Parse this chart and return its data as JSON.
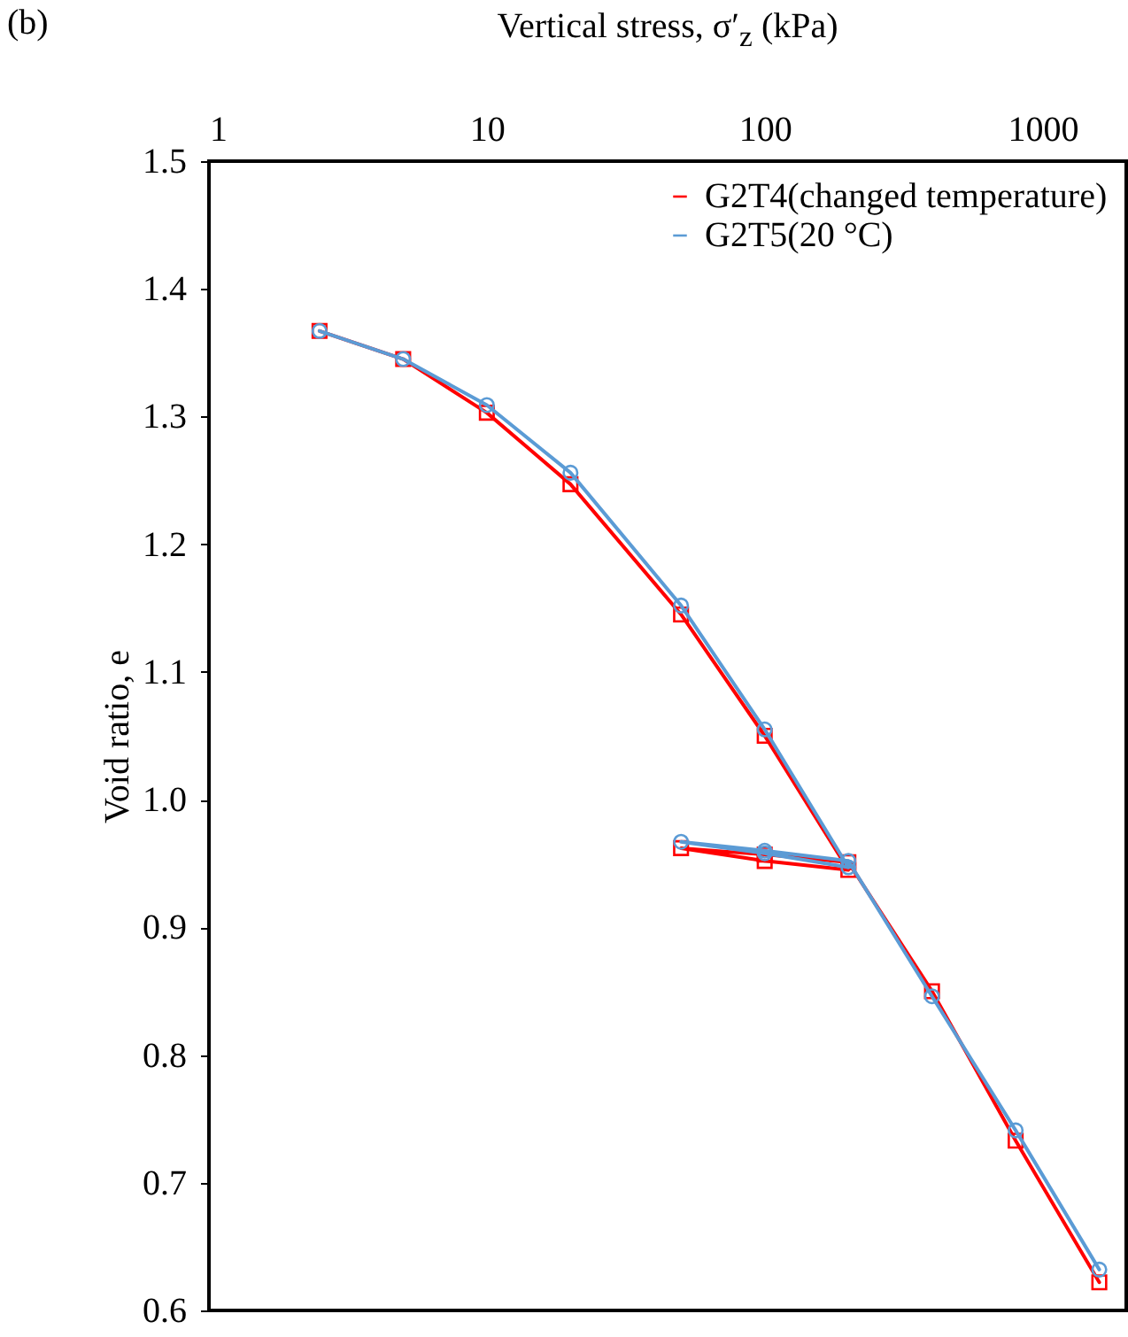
{
  "chart_data": {
    "type": "line",
    "xlabel": "Vertical stress, σ′$_{z}$ (kPa)",
    "ylabel": "Void ratio, e",
    "annotations": [
      "(b)"
    ],
    "x": [
      2.5,
      5,
      10,
      20,
      50,
      100,
      200,
      100,
      50,
      100,
      200,
      400,
      800,
      1600
    ],
    "series": [
      {
        "name": "G2T4(changed temperature)",
        "color": "#ff0000",
        "marker": "square",
        "values": [
          1.367,
          1.345,
          1.303,
          1.247,
          1.145,
          1.05,
          0.945,
          0.952,
          0.962,
          0.957,
          0.951,
          0.85,
          0.733,
          0.622
        ]
      },
      {
        "name": "G2T5(20 °C)",
        "color": "#5b9bd5",
        "marker": "circle",
        "values": [
          1.367,
          1.345,
          1.309,
          1.256,
          1.152,
          1.055,
          0.947,
          0.958,
          0.967,
          0.96,
          0.952,
          0.846,
          0.741,
          0.632
        ]
      }
    ],
    "log": "x",
    "xlim": [
      1,
      2000
    ],
    "xticks": [
      1,
      10,
      100,
      1000
    ],
    "ylim": [
      0.6,
      1.5
    ],
    "yticks": [
      0.6,
      0.7,
      0.8,
      0.9,
      {
        "value": 1,
        "label": "1.0"
      },
      1.1,
      1.2,
      1.3,
      1.4,
      1.5
    ],
    "grid": false,
    "legend": "top right",
    "line_style": "solid"
  }
}
